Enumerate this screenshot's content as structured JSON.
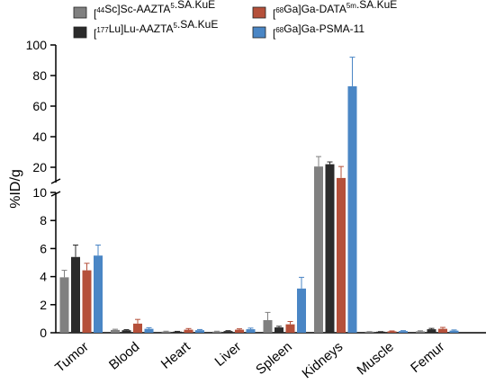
{
  "chart_data": {
    "type": "bar",
    "ylabel": "%ID/g",
    "categories": [
      "Tumor",
      "Blood",
      "Heart",
      "Liver",
      "Spleen",
      "Kidneys",
      "Muscle",
      "Femur"
    ],
    "y_axis_break": {
      "lower_range": [
        0,
        10
      ],
      "lower_ticks": [
        0,
        2,
        4,
        6,
        8,
        10
      ],
      "upper_range": [
        10,
        100
      ],
      "upper_ticks": [
        20,
        40,
        60,
        80,
        100
      ]
    },
    "series": [
      {
        "legend": [
          {
            "t": "["
          },
          {
            "t": "44",
            "sup": true
          },
          {
            "t": "Sc]Sc-AAZTA"
          },
          {
            "t": "5",
            "sup": true
          },
          {
            "t": ".SA.KuE"
          }
        ],
        "color": "#808080",
        "values": [
          3.95,
          0.2,
          0.08,
          0.08,
          0.9,
          20.5,
          0.06,
          0.1
        ],
        "errors": [
          0.5,
          0.05,
          0.03,
          0.03,
          0.55,
          6.5,
          0.02,
          0.04
        ]
      },
      {
        "legend": [
          {
            "t": "["
          },
          {
            "t": "177",
            "sup": true
          },
          {
            "t": "Lu]Lu-AAZTA"
          },
          {
            "t": "5",
            "sup": true
          },
          {
            "t": ".SA.KuE"
          }
        ],
        "color": "#2b2b2b",
        "values": [
          5.4,
          0.18,
          0.08,
          0.12,
          0.38,
          22.0,
          0.06,
          0.25
        ],
        "errors": [
          0.85,
          0.04,
          0.02,
          0.03,
          0.08,
          1.5,
          0.02,
          0.06
        ]
      },
      {
        "legend": [
          {
            "t": "["
          },
          {
            "t": "68",
            "sup": true
          },
          {
            "t": "Ga]Ga-DATA"
          },
          {
            "t": "5m",
            "sup": true
          },
          {
            "t": ".SA.KuE"
          }
        ],
        "color": "#b5503a",
        "values": [
          4.45,
          0.65,
          0.22,
          0.22,
          0.6,
          13.0,
          0.1,
          0.28
        ],
        "errors": [
          0.5,
          0.3,
          0.08,
          0.06,
          0.2,
          7.5,
          0.03,
          0.1
        ]
      },
      {
        "legend": [
          {
            "t": "["
          },
          {
            "t": "68",
            "sup": true
          },
          {
            "t": "Ga]Ga-PSMA-11"
          }
        ],
        "color": "#4a86c5",
        "values": [
          5.5,
          0.28,
          0.18,
          0.25,
          3.15,
          73.0,
          0.12,
          0.15
        ],
        "errors": [
          0.75,
          0.08,
          0.05,
          0.08,
          0.8,
          19.0,
          0.03,
          0.05
        ]
      }
    ],
    "legend_placement": "top",
    "grid": false
  }
}
